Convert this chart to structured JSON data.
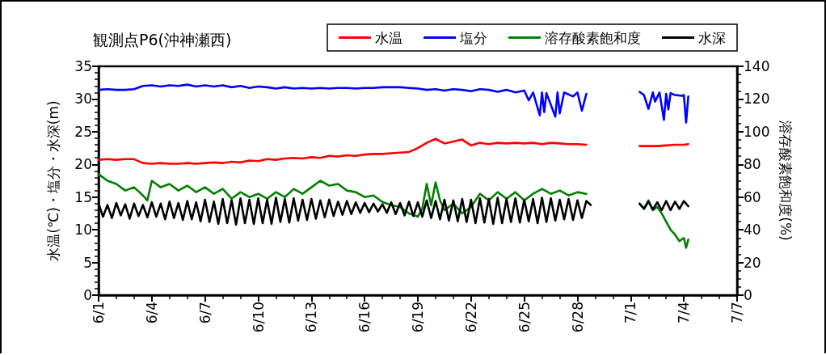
{
  "chart_data": {
    "type": "line",
    "title": "観測点P6(沖神瀬西)",
    "ylabel": "水温(℃)・塩分・水深(m)",
    "y2label": "溶存酸素飽和度(%)",
    "xlim": [
      "--06-01",
      "--07-07"
    ],
    "xticks": [
      {
        "value": "--06-01",
        "label": "6/1"
      },
      {
        "value": "--06-04",
        "label": "6/4"
      },
      {
        "value": "--06-07",
        "label": "6/7"
      },
      {
        "value": "--06-10",
        "label": "6/10"
      },
      {
        "value": "--06-13",
        "label": "6/13"
      },
      {
        "value": "--06-16",
        "label": "6/16"
      },
      {
        "value": "--06-19",
        "label": "6/19"
      },
      {
        "value": "--06-22",
        "label": "6/22"
      },
      {
        "value": "--06-25",
        "label": "6/25"
      },
      {
        "value": "--06-28",
        "label": "6/28"
      },
      {
        "value": "--07-01",
        "label": "7/1"
      },
      {
        "value": "--07-04",
        "label": "7/4"
      },
      {
        "value": "--07-07",
        "label": "7/7"
      }
    ],
    "ylim": [
      0,
      35
    ],
    "yticks": [
      0,
      5,
      10,
      15,
      20,
      25,
      30,
      35
    ],
    "y2lim": [
      0,
      140
    ],
    "y2ticks": [
      0,
      20,
      40,
      60,
      80,
      100,
      120,
      140
    ],
    "grid": false,
    "legend": "top right",
    "marker": "none",
    "line_style": "solid",
    "series": [
      {
        "name": "水温",
        "color": "#ff0000",
        "x": [
          "--06-01T00:00",
          "--06-01T12:00",
          "--06-02T00:00",
          "--06-02T12:00",
          "--06-03T00:00",
          "--06-03T12:00",
          "--06-04T00:00",
          "--06-04T12:00",
          "--06-05T00:00",
          "--06-05T12:00",
          "--06-06T00:00",
          "--06-06T12:00",
          "--06-07T00:00",
          "--06-07T12:00",
          "--06-08T00:00",
          "--06-08T12:00",
          "--06-09T00:00",
          "--06-09T12:00",
          "--06-10T00:00",
          "--06-10T12:00",
          "--06-11T00:00",
          "--06-11T12:00",
          "--06-12T00:00",
          "--06-12T12:00",
          "--06-13T00:00",
          "--06-13T12:00",
          "--06-14T00:00",
          "--06-14T12:00",
          "--06-15T00:00",
          "--06-15T12:00",
          "--06-16T00:00",
          "--06-16T12:00",
          "--06-17T00:00",
          "--06-17T12:00",
          "--06-18T00:00",
          "--06-18T12:00",
          "--06-19T00:00",
          "--06-19T12:00",
          "--06-20T00:00",
          "--06-20T12:00",
          "--06-21T00:00",
          "--06-21T12:00",
          "--06-22T00:00",
          "--06-22T12:00",
          "--06-23T00:00",
          "--06-23T12:00",
          "--06-24T00:00",
          "--06-24T12:00",
          "--06-25T00:00",
          "--06-25T12:00",
          "--06-26T00:00",
          "--06-26T12:00",
          "--06-27T00:00",
          "--06-27T12:00",
          "--06-28T00:00",
          "--06-28T12:00",
          "--06-30T00:00",
          "--07-01T12:00",
          "--07-02T00:00",
          "--07-02T12:00",
          "--07-03T00:00",
          "--07-03T12:00",
          "--07-04T00:00",
          "--07-04T06:00"
        ],
        "values": [
          20.7,
          20.8,
          20.7,
          20.8,
          20.8,
          20.2,
          20.1,
          20.2,
          20.1,
          20.1,
          20.2,
          20.1,
          20.2,
          20.3,
          20.2,
          20.4,
          20.3,
          20.6,
          20.5,
          20.8,
          20.7,
          20.9,
          21.0,
          20.9,
          21.1,
          21.0,
          21.3,
          21.2,
          21.4,
          21.3,
          21.5,
          21.6,
          21.6,
          21.7,
          21.8,
          21.9,
          22.5,
          23.3,
          23.9,
          23.2,
          23.5,
          23.8,
          22.9,
          23.3,
          23.1,
          23.3,
          23.2,
          23.3,
          23.2,
          23.3,
          23.1,
          23.3,
          23.2,
          23.1,
          23.1,
          23.0,
          null,
          22.8,
          22.8,
          22.8,
          22.9,
          23.0,
          23.0,
          23.1
        ]
      },
      {
        "name": "塩分",
        "color": "#0000ff",
        "x": [
          "--06-01T00:00",
          "--06-01T12:00",
          "--06-02T00:00",
          "--06-02T12:00",
          "--06-03T00:00",
          "--06-03T12:00",
          "--06-04T00:00",
          "--06-04T12:00",
          "--06-05T00:00",
          "--06-05T12:00",
          "--06-06T00:00",
          "--06-06T12:00",
          "--06-07T00:00",
          "--06-07T12:00",
          "--06-08T00:00",
          "--06-08T12:00",
          "--06-09T00:00",
          "--06-09T12:00",
          "--06-10T00:00",
          "--06-10T12:00",
          "--06-11T00:00",
          "--06-11T12:00",
          "--06-12T00:00",
          "--06-12T12:00",
          "--06-13T00:00",
          "--06-13T12:00",
          "--06-14T00:00",
          "--06-14T12:00",
          "--06-15T00:00",
          "--06-15T12:00",
          "--06-16T00:00",
          "--06-16T12:00",
          "--06-17T00:00",
          "--06-17T12:00",
          "--06-18T00:00",
          "--06-18T12:00",
          "--06-19T00:00",
          "--06-19T12:00",
          "--06-20T00:00",
          "--06-20T12:00",
          "--06-21T00:00",
          "--06-21T12:00",
          "--06-22T00:00",
          "--06-22T12:00",
          "--06-23T00:00",
          "--06-23T12:00",
          "--06-24T00:00",
          "--06-24T12:00",
          "--06-25T00:00",
          "--06-25T06:00",
          "--06-25T12:00",
          "--06-25T21:00",
          "--06-26T00:00",
          "--06-26T03:00",
          "--06-26T06:00",
          "--06-26T18:00",
          "--06-26T21:00",
          "--06-27T00:00",
          "--06-27T06:00",
          "--06-27T18:00",
          "--06-28T00:00",
          "--06-28T06:00",
          "--06-28T12:00",
          "--06-30T00:00",
          "--07-01T12:00",
          "--07-01T18:00",
          "--07-02T00:00",
          "--07-02T06:00",
          "--07-02T09:00",
          "--07-02T15:00",
          "--07-02T21:00",
          "--07-03T00:00",
          "--07-03T03:00",
          "--07-03T06:00",
          "--07-03T12:00",
          "--07-03T21:00",
          "--07-04T00:00",
          "--07-04T03:00",
          "--07-04T06:00"
        ],
        "values": [
          31.4,
          31.5,
          31.4,
          31.4,
          31.5,
          32.0,
          32.1,
          31.9,
          32.1,
          32.0,
          32.2,
          31.9,
          32.1,
          31.9,
          32.1,
          31.8,
          32.0,
          31.7,
          31.9,
          31.8,
          31.6,
          31.8,
          31.6,
          31.7,
          31.6,
          31.7,
          31.6,
          31.7,
          31.7,
          31.6,
          31.7,
          31.7,
          31.8,
          31.8,
          31.8,
          31.7,
          31.6,
          31.4,
          31.5,
          31.3,
          31.5,
          31.4,
          31.2,
          31.5,
          31.4,
          31.1,
          31.4,
          31.0,
          31.3,
          29.8,
          31.0,
          27.5,
          31.0,
          28.0,
          30.9,
          27.3,
          31.0,
          27.8,
          31.0,
          30.4,
          31.0,
          28.2,
          30.8,
          null,
          31.1,
          30.6,
          28.5,
          31.0,
          29.6,
          31.0,
          26.8,
          30.8,
          28.4,
          30.9,
          30.6,
          30.5,
          30.6,
          26.4,
          30.4
        ]
      },
      {
        "name": "溶存酸素飽和度",
        "color": "#008000",
        "axis": "y2",
        "x": [
          "--06-01T00:00",
          "--06-01T12:00",
          "--06-02T00:00",
          "--06-02T12:00",
          "--06-03T00:00",
          "--06-03T12:00",
          "--06-03T18:00",
          "--06-04T00:00",
          "--06-04T12:00",
          "--06-05T00:00",
          "--06-05T12:00",
          "--06-06T00:00",
          "--06-06T12:00",
          "--06-07T00:00",
          "--06-07T12:00",
          "--06-08T00:00",
          "--06-08T12:00",
          "--06-09T00:00",
          "--06-09T12:00",
          "--06-10T00:00",
          "--06-10T12:00",
          "--06-11T00:00",
          "--06-11T12:00",
          "--06-12T00:00",
          "--06-12T12:00",
          "--06-13T00:00",
          "--06-13T12:00",
          "--06-14T00:00",
          "--06-14T12:00",
          "--06-15T00:00",
          "--06-15T12:00",
          "--06-16T00:00",
          "--06-16T12:00",
          "--06-17T00:00",
          "--06-17T12:00",
          "--06-18T00:00",
          "--06-18T12:00",
          "--06-19T00:00",
          "--06-19T06:00",
          "--06-19T12:00",
          "--06-19T18:00",
          "--06-20T00:00",
          "--06-20T06:00",
          "--06-20T12:00",
          "--06-21T00:00",
          "--06-21T12:00",
          "--06-22T00:00",
          "--06-22T12:00",
          "--06-23T00:00",
          "--06-23T12:00",
          "--06-24T00:00",
          "--06-24T12:00",
          "--06-25T00:00",
          "--06-25T12:00",
          "--06-26T00:00",
          "--06-26T12:00",
          "--06-27T00:00",
          "--06-27T12:00",
          "--06-28T00:00",
          "--06-28T12:00",
          "--06-30T00:00",
          "--07-01T12:00",
          "--07-01T18:00",
          "--07-02T00:00",
          "--07-02T06:00",
          "--07-02T12:00",
          "--07-02T18:00",
          "--07-03T00:00",
          "--07-03T06:00",
          "--07-03T12:00",
          "--07-03T18:00",
          "--07-04T00:00",
          "--07-04T03:00",
          "--07-04T06:00"
        ],
        "values": [
          74,
          70,
          68,
          64,
          66,
          61,
          58,
          70,
          66,
          68,
          64,
          67,
          63,
          66,
          62,
          65,
          59,
          63,
          60,
          62,
          59,
          63,
          60,
          65,
          62,
          66,
          70,
          67,
          68,
          64,
          63,
          60,
          61,
          57,
          55,
          54,
          50,
          48,
          53,
          68,
          55,
          69,
          58,
          52,
          56,
          50,
          54,
          62,
          58,
          63,
          59,
          63,
          58,
          62,
          65,
          62,
          64,
          61,
          63,
          62,
          null,
          56,
          53,
          58,
          52,
          54,
          50,
          45,
          40,
          37,
          33,
          35,
          29,
          34
        ]
      },
      {
        "name": "水深",
        "color": "#000000",
        "x": [
          "--06-01T00:00",
          "--06-01T06:00",
          "--06-01T12:00",
          "--06-01T18:00",
          "--06-02T00:00",
          "--06-02T06:00",
          "--06-02T12:00",
          "--06-02T18:00",
          "--06-03T00:00",
          "--06-03T06:00",
          "--06-03T12:00",
          "--06-03T18:00",
          "--06-04T00:00",
          "--06-04T06:00",
          "--06-04T12:00",
          "--06-04T18:00",
          "--06-05T00:00",
          "--06-05T06:00",
          "--06-05T12:00",
          "--06-05T18:00",
          "--06-06T00:00",
          "--06-06T06:00",
          "--06-06T12:00",
          "--06-06T18:00",
          "--06-07T00:00",
          "--06-07T06:00",
          "--06-07T12:00",
          "--06-07T18:00",
          "--06-08T00:00",
          "--06-08T06:00",
          "--06-08T12:00",
          "--06-08T18:00",
          "--06-09T00:00",
          "--06-09T06:00",
          "--06-09T12:00",
          "--06-09T18:00",
          "--06-10T00:00",
          "--06-10T06:00",
          "--06-10T12:00",
          "--06-10T18:00",
          "--06-11T00:00",
          "--06-11T06:00",
          "--06-11T12:00",
          "--06-11T18:00",
          "--06-12T00:00",
          "--06-12T06:00",
          "--06-12T12:00",
          "--06-12T18:00",
          "--06-13T00:00",
          "--06-13T06:00",
          "--06-13T12:00",
          "--06-13T18:00",
          "--06-14T00:00",
          "--06-14T06:00",
          "--06-14T12:00",
          "--06-14T18:00",
          "--06-15T00:00",
          "--06-15T06:00",
          "--06-15T12:00",
          "--06-15T18:00",
          "--06-16T00:00",
          "--06-16T06:00",
          "--06-16T12:00",
          "--06-16T18:00",
          "--06-17T00:00",
          "--06-17T06:00",
          "--06-17T12:00",
          "--06-17T18:00",
          "--06-18T00:00",
          "--06-18T06:00",
          "--06-18T12:00",
          "--06-18T18:00",
          "--06-19T00:00",
          "--06-19T06:00",
          "--06-19T12:00",
          "--06-19T18:00",
          "--06-20T00:00",
          "--06-20T06:00",
          "--06-20T12:00",
          "--06-20T18:00",
          "--06-21T00:00",
          "--06-21T06:00",
          "--06-21T12:00",
          "--06-21T18:00",
          "--06-22T00:00",
          "--06-22T06:00",
          "--06-22T12:00",
          "--06-22T18:00",
          "--06-23T00:00",
          "--06-23T06:00",
          "--06-23T12:00",
          "--06-23T18:00",
          "--06-24T00:00",
          "--06-24T06:00",
          "--06-24T12:00",
          "--06-24T18:00",
          "--06-25T00:00",
          "--06-25T06:00",
          "--06-25T12:00",
          "--06-25T18:00",
          "--06-26T00:00",
          "--06-26T06:00",
          "--06-26T12:00",
          "--06-26T18:00",
          "--06-27T00:00",
          "--06-27T06:00",
          "--06-27T12:00",
          "--06-27T18:00",
          "--06-28T00:00",
          "--06-28T06:00",
          "--06-28T12:00",
          "--06-28T18:00",
          "--06-30T00:00",
          "--07-01T12:00",
          "--07-01T18:00",
          "--07-02T00:00",
          "--07-02T06:00",
          "--07-02T12:00",
          "--07-02T18:00",
          "--07-03T00:00",
          "--07-03T06:00",
          "--07-03T12:00",
          "--07-03T18:00",
          "--07-04T00:00",
          "--07-04T06:00"
        ],
        "values": [
          14.0,
          12.0,
          13.8,
          11.8,
          14.1,
          12.2,
          13.9,
          11.7,
          14.0,
          12.1,
          13.8,
          11.9,
          14.2,
          12.0,
          14.0,
          11.6,
          14.3,
          11.8,
          14.1,
          11.5,
          14.4,
          11.6,
          14.2,
          11.3,
          14.6,
          11.2,
          14.3,
          10.9,
          14.7,
          11.0,
          14.5,
          10.8,
          14.8,
          11.0,
          14.6,
          10.9,
          14.8,
          11.0,
          14.6,
          10.9,
          14.9,
          11.2,
          14.7,
          11.1,
          14.8,
          11.4,
          14.6,
          11.5,
          14.7,
          11.7,
          14.5,
          11.9,
          14.6,
          12.1,
          14.3,
          12.3,
          14.4,
          12.4,
          14.2,
          12.6,
          14.1,
          12.7,
          14.0,
          12.8,
          13.9,
          12.6,
          14.2,
          12.4,
          14.1,
          12.2,
          14.3,
          12.1,
          14.2,
          12.0,
          14.5,
          11.8,
          14.4,
          11.6,
          14.6,
          11.4,
          14.5,
          11.3,
          14.7,
          11.2,
          14.6,
          11.0,
          14.8,
          11.1,
          14.7,
          10.9,
          14.9,
          11.0,
          14.7,
          11.2,
          14.8,
          11.1,
          14.6,
          11.3,
          14.7,
          11.0,
          14.9,
          11.2,
          14.8,
          11.4,
          14.6,
          11.6,
          14.7,
          11.5,
          14.5,
          11.8,
          14.4,
          13.8,
          null,
          14.0,
          13.2,
          14.3,
          13.1,
          14.2,
          13.0,
          14.4,
          13.0,
          14.3,
          13.2,
          14.4,
          13.6
        ]
      }
    ]
  }
}
